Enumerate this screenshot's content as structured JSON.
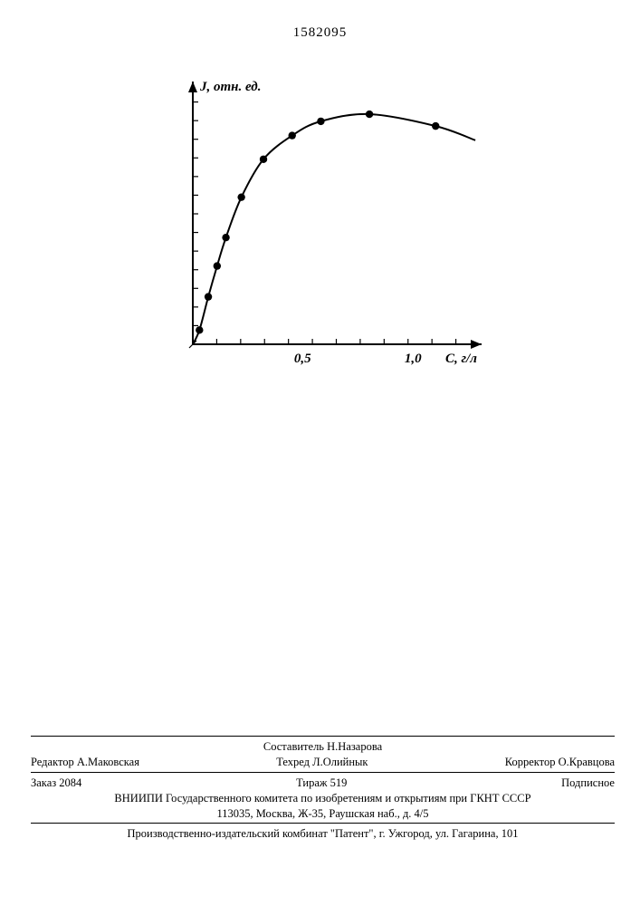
{
  "document_number": "1582095",
  "chart": {
    "type": "scatter-line",
    "y_axis_label": "J, отн. ед.",
    "x_axis_label": "С, г/л",
    "x_ticks_major": [
      0.5,
      1.0
    ],
    "x_tick_labels": [
      "0,5",
      "1,0"
    ],
    "xlim": [
      0,
      1.3
    ],
    "ylim": [
      0,
      1.1
    ],
    "minor_tick_count_y": 13,
    "minor_tick_count_x": 11,
    "points": [
      {
        "x": 0.03,
        "y": 0.06
      },
      {
        "x": 0.07,
        "y": 0.2
      },
      {
        "x": 0.11,
        "y": 0.33
      },
      {
        "x": 0.15,
        "y": 0.45
      },
      {
        "x": 0.22,
        "y": 0.62
      },
      {
        "x": 0.32,
        "y": 0.78
      },
      {
        "x": 0.45,
        "y": 0.88
      },
      {
        "x": 0.58,
        "y": 0.94
      },
      {
        "x": 0.8,
        "y": 0.97
      },
      {
        "x": 1.1,
        "y": 0.92
      }
    ],
    "curve_end": {
      "x": 1.28,
      "y": 0.86
    },
    "line_color": "#000000",
    "marker_color": "#000000",
    "line_width": 2.0,
    "marker_radius": 4.2,
    "axis_line_width": 2.0,
    "background_color": "#ffffff",
    "axis_origin_marker": true
  },
  "footer": {
    "compiler": "Составитель Н.Назарова",
    "editor": "Редактор А.Маковская",
    "techred": "Техред Л.Олийнык",
    "corrector": "Корректор О.Кравцова",
    "order": "Заказ 2084",
    "tirazh": "Тираж 519",
    "subscription": "Подписное",
    "org_line1": "ВНИИПИ Государственного комитета по изобретениям и открытиям при ГКНТ СССР",
    "org_line2": "113035, Москва, Ж-35, Раушская наб., д. 4/5",
    "press": "Производственно-издательский комбинат \"Патент\", г. Ужгород, ул. Гагарина, 101"
  }
}
